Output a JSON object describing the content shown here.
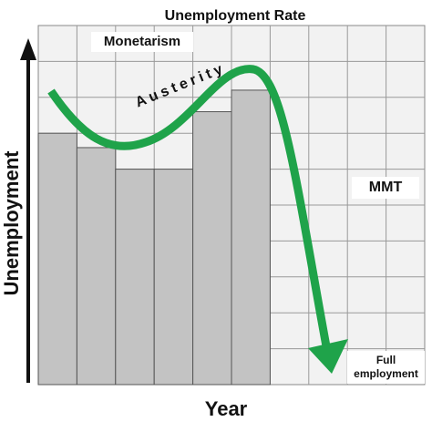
{
  "chart_data": {
    "type": "bar",
    "title": "Unemployment Rate",
    "x_label": "Year",
    "y_label": "Unemployment",
    "categories": [
      null,
      null,
      null,
      null,
      null,
      null
    ],
    "values": [
      7.0,
      6.6,
      6.0,
      6.0,
      7.6,
      8.2
    ],
    "color": "#c3c3c3",
    "ylim": [
      0,
      10
    ],
    "annotations": [
      "Monetarism",
      "Austerity",
      "MMT",
      "Full employment"
    ]
  }
}
